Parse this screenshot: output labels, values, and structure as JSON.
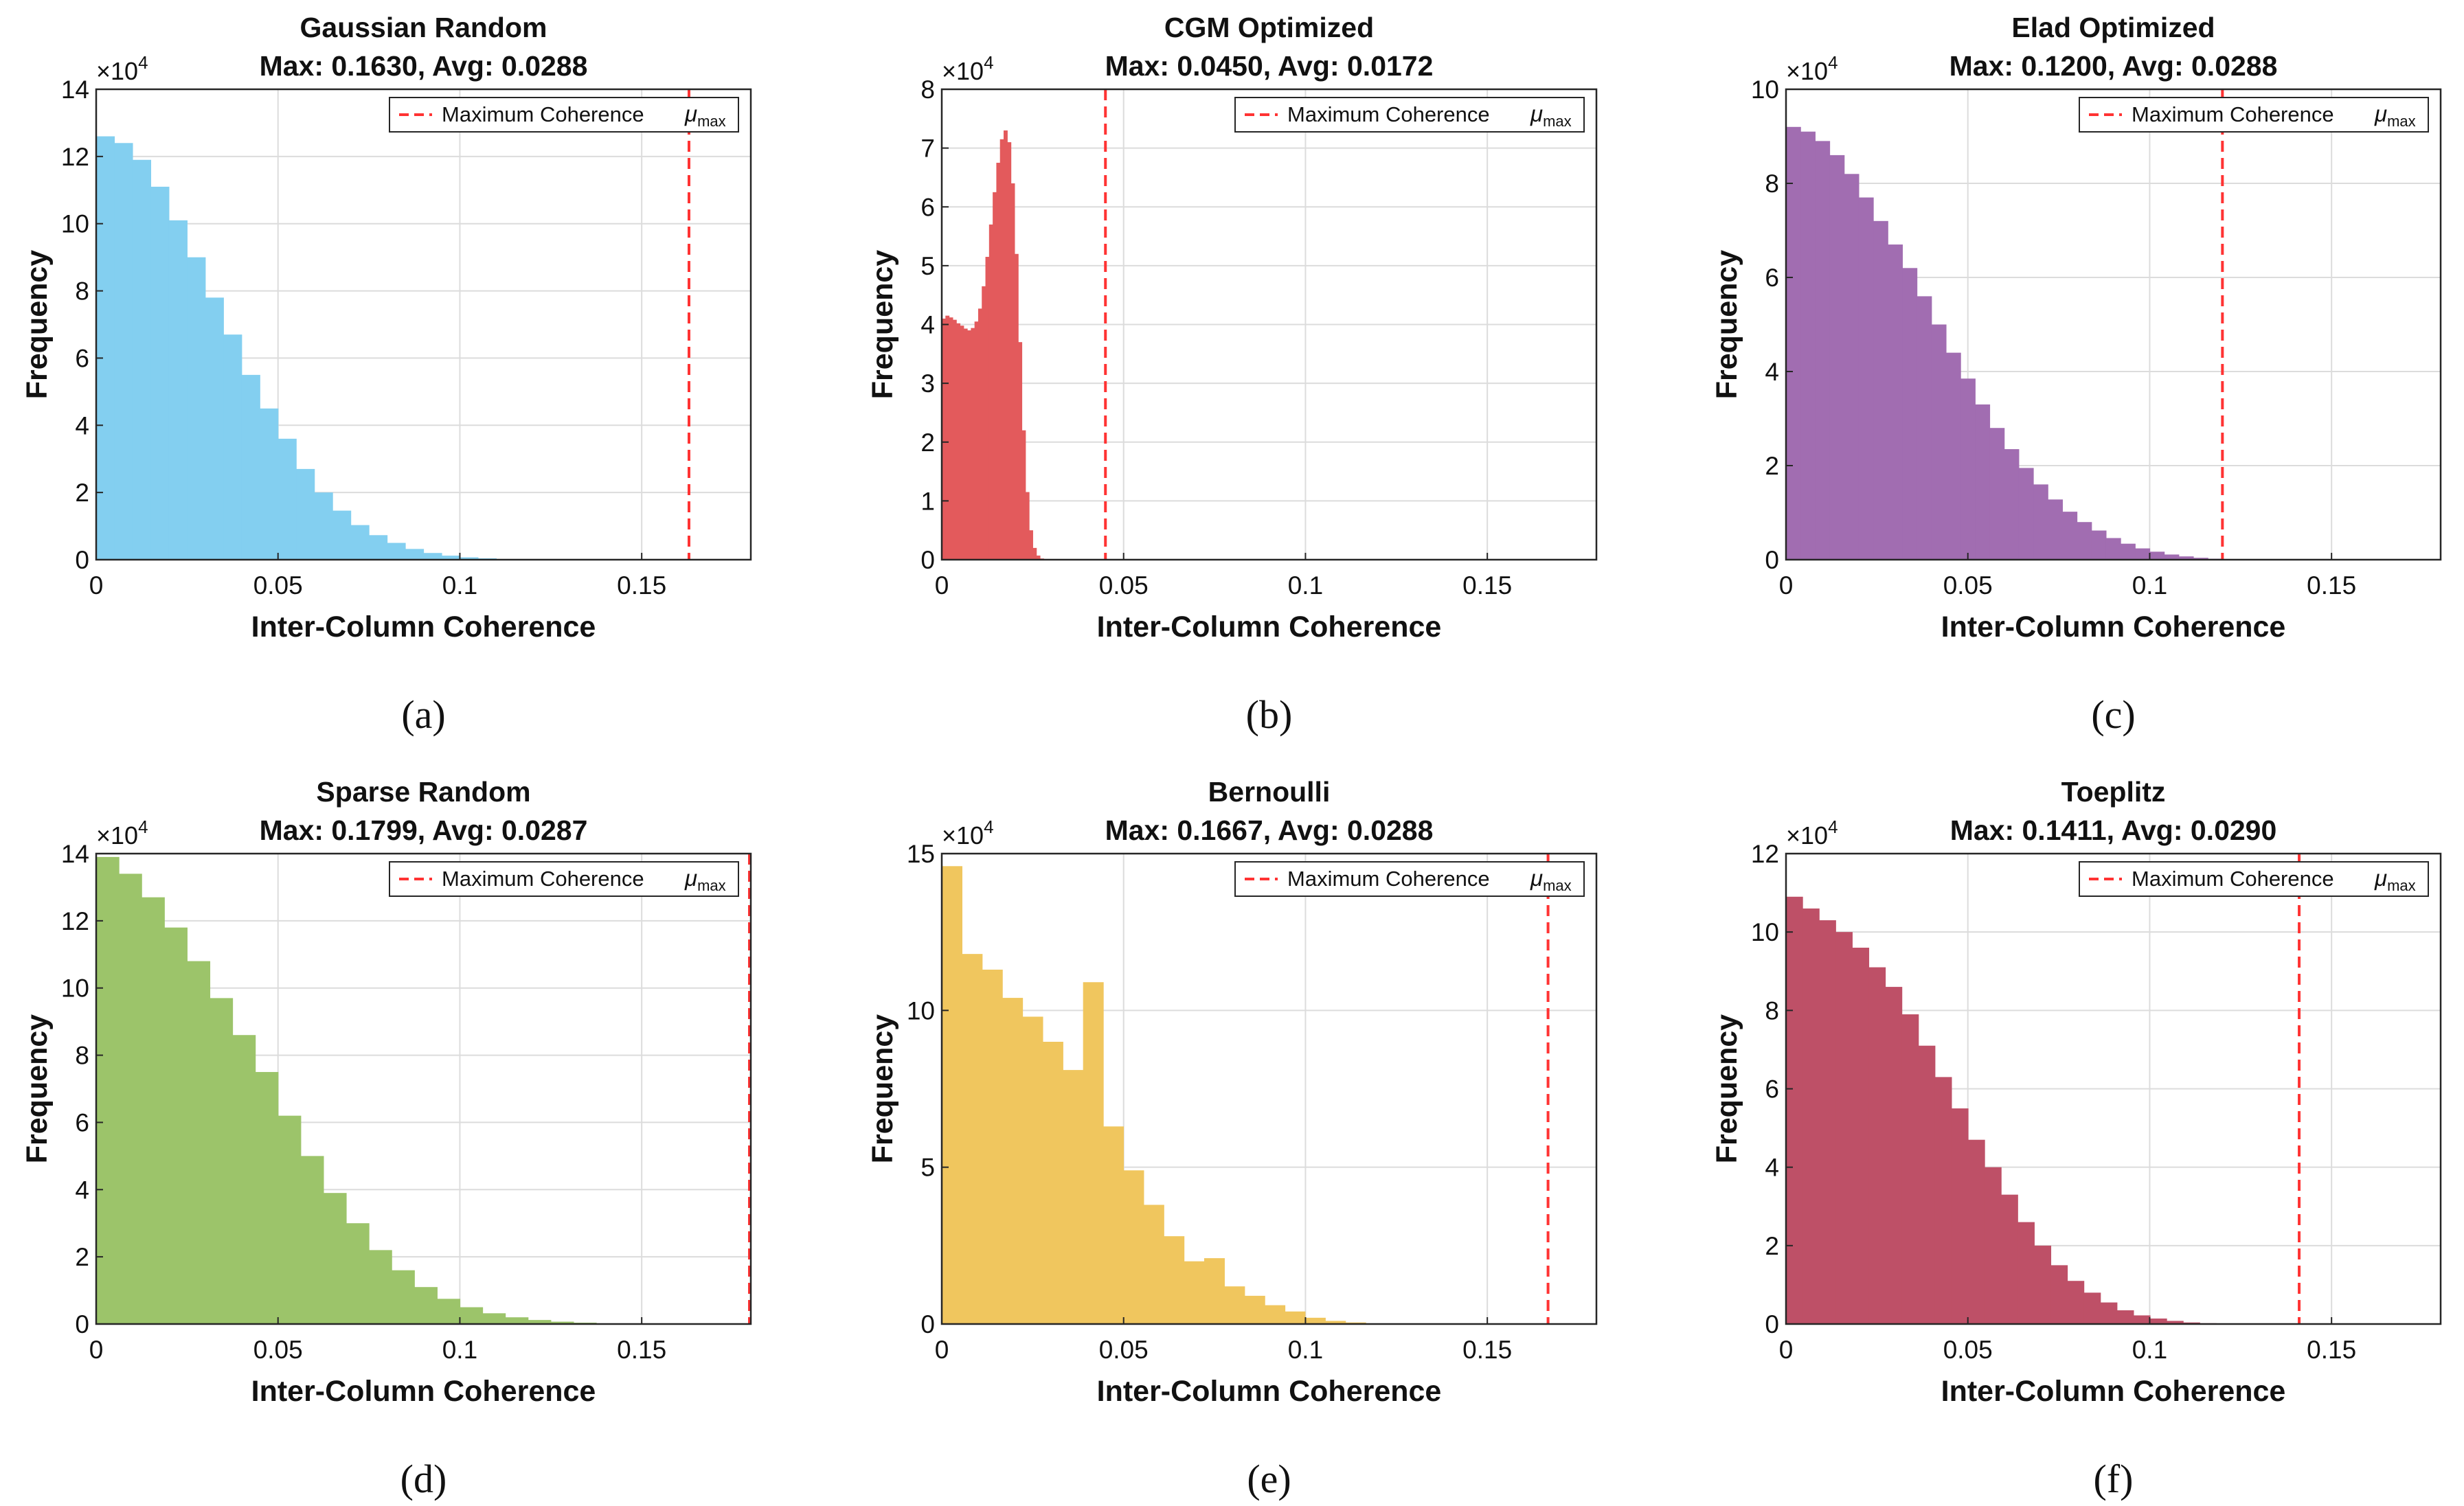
{
  "figure": {
    "x_axis_label": "Inter-Column Coherence",
    "y_axis_label": "Frequency",
    "exponent_base": "×10",
    "exponent_power": "4",
    "legend_text": "Maximum Coherence",
    "legend_symbol": "μ",
    "legend_subscript": "max",
    "threshold_color": "#ff3333",
    "grid_color": "#dcdcdc"
  },
  "chart_data": [
    {
      "type": "bar",
      "panel_label": "(a)",
      "title": "Gaussian Random",
      "subtitle": "Max: 0.1630, Avg: 0.0288",
      "color": "#83cff0",
      "xlim": [
        0,
        0.18
      ],
      "ylim": [
        0,
        140000
      ],
      "x_ticks": [
        0,
        0.05,
        0.1,
        0.15
      ],
      "x_tick_labels": [
        "0",
        "0.05",
        "0.1",
        "0.15"
      ],
      "y_ticks": [
        0,
        20000,
        40000,
        60000,
        80000,
        100000,
        120000,
        140000
      ],
      "y_tick_labels": [
        "0",
        "2",
        "4",
        "6",
        "8",
        "10",
        "12",
        "14"
      ],
      "bin_width": 0.005,
      "values": [
        126000,
        124000,
        119000,
        111000,
        101000,
        90000,
        78000,
        67000,
        55000,
        45000,
        36000,
        27000,
        20000,
        14600,
        10300,
        7300,
        5000,
        3200,
        2000,
        1200,
        700,
        400,
        200,
        100,
        50
      ],
      "max_coherence": 0.163
    },
    {
      "type": "bar",
      "panel_label": "(b)",
      "title": "CGM Optimized",
      "subtitle": "Max: 0.0450, Avg: 0.0172",
      "color": "#e35a5c",
      "xlim": [
        0,
        0.18
      ],
      "ylim": [
        0,
        80000
      ],
      "x_ticks": [
        0,
        0.05,
        0.1,
        0.15
      ],
      "x_tick_labels": [
        "0",
        "0.05",
        "0.1",
        "0.15"
      ],
      "y_ticks": [
        0,
        10000,
        20000,
        30000,
        40000,
        50000,
        60000,
        70000,
        80000
      ],
      "y_tick_labels": [
        "0",
        "1",
        "2",
        "3",
        "4",
        "5",
        "6",
        "7",
        "8"
      ],
      "bin_width": 0.001,
      "values": [
        41000,
        41500,
        41200,
        40800,
        40200,
        39800,
        39300,
        39000,
        39400,
        40500,
        42700,
        46500,
        51500,
        57000,
        62500,
        67500,
        71500,
        73000,
        71000,
        64000,
        52000,
        37000,
        22000,
        11500,
        5000,
        2000,
        700,
        200
      ],
      "max_coherence": 0.045
    },
    {
      "type": "bar",
      "panel_label": "(c)",
      "title": "Elad Optimized",
      "subtitle": "Max: 0.1200, Avg: 0.0288",
      "color": "#a16db1",
      "xlim": [
        0,
        0.18
      ],
      "ylim": [
        0,
        100000
      ],
      "x_ticks": [
        0,
        0.05,
        0.1,
        0.15
      ],
      "x_tick_labels": [
        "0",
        "0.05",
        "0.1",
        "0.15"
      ],
      "y_ticks": [
        0,
        20000,
        40000,
        60000,
        80000,
        100000
      ],
      "y_tick_labels": [
        "0",
        "2",
        "4",
        "6",
        "8",
        "10"
      ],
      "bin_width": 0.004,
      "values": [
        92000,
        91000,
        89000,
        86000,
        82000,
        77000,
        72000,
        67000,
        62000,
        56000,
        50000,
        44000,
        38500,
        33000,
        28000,
        23500,
        19500,
        16000,
        12800,
        10200,
        8000,
        6200,
        4600,
        3400,
        2400,
        1700,
        1100,
        700,
        400,
        200
      ],
      "max_coherence": 0.12
    },
    {
      "type": "bar",
      "panel_label": "(d)",
      "title": "Sparse Random",
      "subtitle": "Max: 0.1799, Avg: 0.0287",
      "color": "#9cc46a",
      "xlim": [
        0,
        0.18
      ],
      "ylim": [
        0,
        140000
      ],
      "x_ticks": [
        0,
        0.05,
        0.1,
        0.15
      ],
      "x_tick_labels": [
        "0",
        "0.05",
        "0.1",
        "0.15"
      ],
      "y_ticks": [
        0,
        20000,
        40000,
        60000,
        80000,
        100000,
        120000,
        140000
      ],
      "y_tick_labels": [
        "0",
        "2",
        "4",
        "6",
        "8",
        "10",
        "12",
        "14"
      ],
      "bin_width": 0.00625,
      "values": [
        139000,
        134000,
        127000,
        118000,
        108000,
        97000,
        86000,
        75000,
        62000,
        50000,
        39000,
        30000,
        22000,
        16000,
        11000,
        7500,
        5000,
        3200,
        2000,
        1200,
        700,
        400,
        200,
        100
      ],
      "max_coherence": 0.1799
    },
    {
      "type": "bar",
      "panel_label": "(e)",
      "title": "Bernoulli",
      "subtitle": "Max: 0.1667, Avg: 0.0288",
      "color": "#f0c65e",
      "xlim": [
        0,
        0.18
      ],
      "ylim": [
        0,
        150000
      ],
      "x_ticks": [
        0,
        0.05,
        0.1,
        0.15
      ],
      "x_tick_labels": [
        "0",
        "0.05",
        "0.1",
        "0.15"
      ],
      "y_ticks": [
        0,
        50000,
        100000,
        150000
      ],
      "y_tick_labels": [
        "0",
        "5",
        "10",
        "15"
      ],
      "bin_width": 0.00555,
      "values": [
        146000,
        118000,
        113000,
        104000,
        98000,
        90000,
        81000,
        109000,
        63000,
        49000,
        38000,
        28000,
        20000,
        21000,
        12000,
        9000,
        6000,
        4000,
        2000,
        1000,
        500,
        200
      ],
      "max_coherence": 0.1667
    },
    {
      "type": "bar",
      "panel_label": "(f)",
      "title": "Toeplitz",
      "subtitle": "Max: 0.1411, Avg: 0.0290",
      "color": "#be5067",
      "xlim": [
        0,
        0.18
      ],
      "ylim": [
        0,
        120000
      ],
      "x_ticks": [
        0,
        0.05,
        0.1,
        0.15
      ],
      "x_tick_labels": [
        "0",
        "0.05",
        "0.1",
        "0.15"
      ],
      "y_ticks": [
        0,
        20000,
        40000,
        60000,
        80000,
        100000,
        120000
      ],
      "y_tick_labels": [
        "0",
        "2",
        "4",
        "6",
        "8",
        "10",
        "12"
      ],
      "bin_width": 0.00455,
      "values": [
        109000,
        106000,
        103000,
        100000,
        96000,
        91000,
        86000,
        79000,
        71000,
        63000,
        55000,
        47000,
        40000,
        33000,
        26000,
        20000,
        15000,
        11000,
        8000,
        5500,
        3500,
        2200,
        1400,
        800,
        400,
        200
      ],
      "max_coherence": 0.1411
    }
  ]
}
